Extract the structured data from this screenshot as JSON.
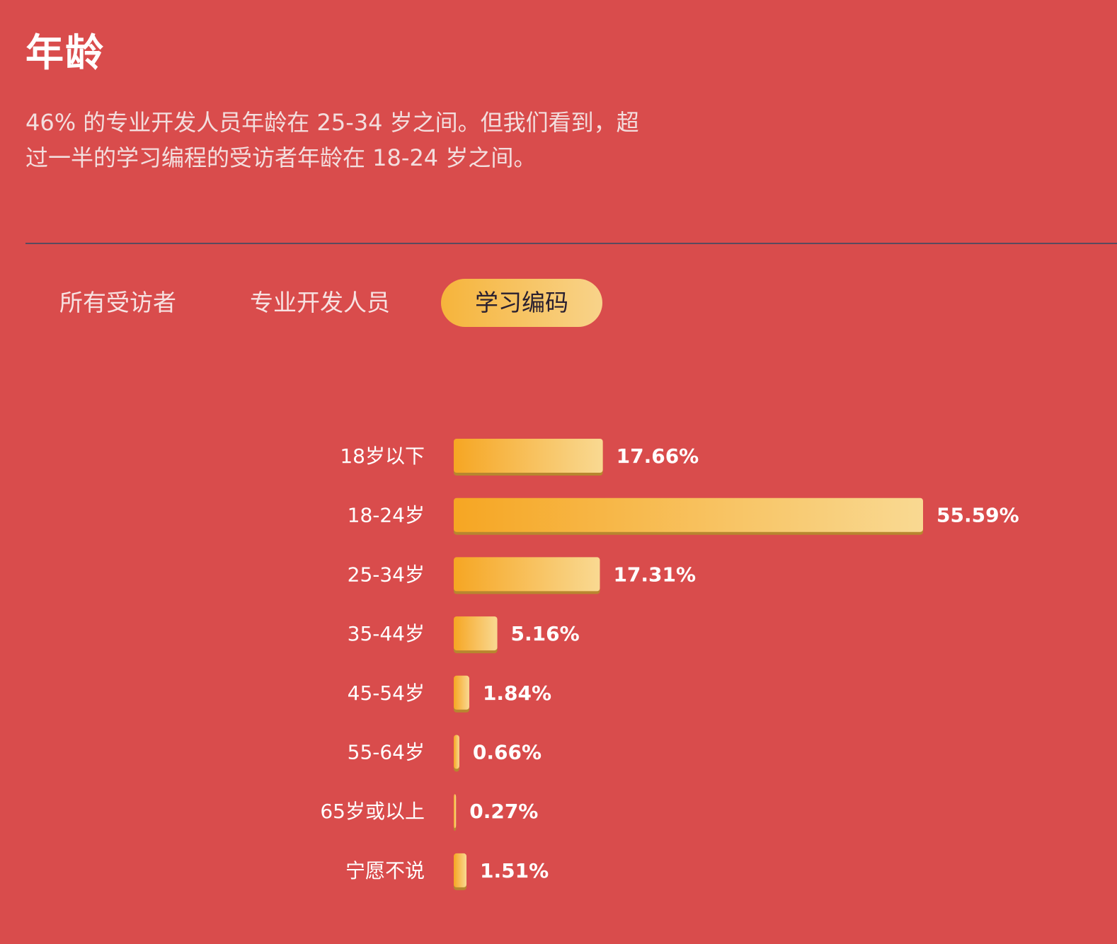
{
  "header": {
    "title": "年龄",
    "subtitle_line1": "46% 的专业开发人员年龄在 25-34 岁之间。但我们看到，超",
    "subtitle_line2": "过一半的学习编程的受访者年龄在 18-24 岁之间。"
  },
  "tabs": [
    {
      "label": "所有受访者",
      "active": false
    },
    {
      "label": "专业开发人员",
      "active": false
    },
    {
      "label": "学习编码",
      "active": true
    }
  ],
  "colors": {
    "background": "#d94c4c",
    "bar_start": "#f6a623",
    "bar_end": "#f9d992",
    "bar_shadow": "#b8862f"
  },
  "chart_data": {
    "type": "bar",
    "orientation": "horizontal",
    "categories": [
      "18岁以下",
      "18-24岁",
      "25-34岁",
      "35-44岁",
      "45-54岁",
      "55-64岁",
      "65岁或以上",
      "宁愿不说"
    ],
    "values": [
      17.66,
      55.59,
      17.31,
      5.16,
      1.84,
      0.66,
      0.27,
      1.51
    ],
    "value_labels": [
      "17.66%",
      "55.59%",
      "17.31%",
      "5.16%",
      "1.84%",
      "0.66%",
      "0.27%",
      "1.51%"
    ],
    "xlim": [
      0,
      55.59
    ],
    "grid": false,
    "legend": false
  }
}
